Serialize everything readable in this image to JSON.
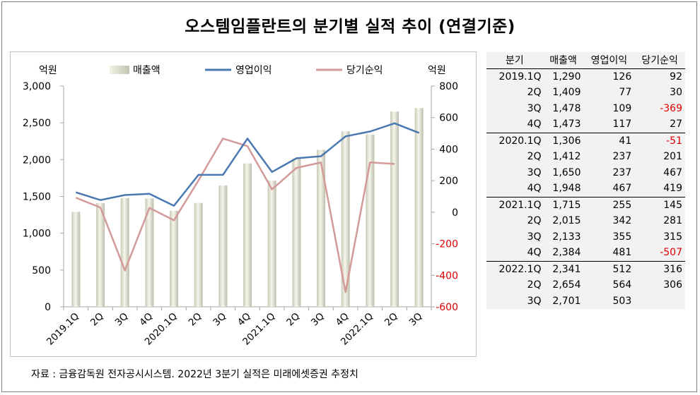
{
  "title": "오스템임플란트의 분기별 실적 추이 (연결기준)",
  "source": "자료 : 금융감독원 전자공시시스템. 2022년 3분기 실적은 미래에셋증권 추정치",
  "colors": {
    "revenue": "#d9d9c8",
    "operating_profit": "#4a78b0",
    "net_profit": "#d29a98",
    "negative": "#e00000"
  },
  "chart_data": {
    "type": "bar",
    "left_unit": "억원",
    "right_unit": "억원",
    "categories": [
      "2019.1Q",
      "2Q",
      "3Q",
      "4Q",
      "2020.1Q",
      "2Q",
      "3Q",
      "4Q",
      "2021.1Q",
      "2Q",
      "3Q",
      "4Q",
      "2022.1Q",
      "2Q",
      "3Q"
    ],
    "series": [
      {
        "name": "매출액",
        "type": "bar",
        "axis": "left",
        "values": [
          1290,
          1409,
          1478,
          1473,
          1306,
          1412,
          1650,
          1948,
          1715,
          2015,
          2133,
          2384,
          2341,
          2654,
          2701
        ]
      },
      {
        "name": "영업이익",
        "type": "line",
        "axis": "right",
        "values": [
          126,
          77,
          109,
          117,
          41,
          237,
          237,
          467,
          255,
          342,
          355,
          481,
          512,
          564,
          503
        ]
      },
      {
        "name": "당기순익",
        "type": "line",
        "axis": "right",
        "values": [
          92,
          30,
          -369,
          27,
          -51,
          201,
          467,
          419,
          145,
          281,
          315,
          -507,
          316,
          306,
          null
        ]
      }
    ],
    "left_axis": {
      "min": 0,
      "max": 3000,
      "ticks": [
        "0",
        "500",
        "1,000",
        "1,500",
        "2,000",
        "2,500",
        "3,000"
      ],
      "tick_values": [
        0,
        500,
        1000,
        1500,
        2000,
        2500,
        3000
      ]
    },
    "right_axis": {
      "min": -600,
      "max": 800,
      "ticks": [
        "-600",
        "-400",
        "-200",
        "0",
        "200",
        "400",
        "600",
        "800"
      ],
      "tick_values": [
        -600,
        -400,
        -200,
        0,
        200,
        400,
        600,
        800
      ]
    },
    "grid": false,
    "legend_position": "top"
  },
  "table": {
    "headers": [
      "분기",
      "매출액",
      "영업이익",
      "당기순익"
    ],
    "rows": [
      {
        "period": "2019.1Q",
        "revenue": "1,290",
        "op": "126",
        "net": "92",
        "year_start": true
      },
      {
        "period": "2Q",
        "revenue": "1,409",
        "op": "77",
        "net": "30"
      },
      {
        "period": "3Q",
        "revenue": "1,478",
        "op": "109",
        "net": "-369"
      },
      {
        "period": "4Q",
        "revenue": "1,473",
        "op": "117",
        "net": "27"
      },
      {
        "period": "2020.1Q",
        "revenue": "1,306",
        "op": "41",
        "net": "-51",
        "year_start": true
      },
      {
        "period": "2Q",
        "revenue": "1,412",
        "op": "237",
        "net": "201"
      },
      {
        "period": "3Q",
        "revenue": "1,650",
        "op": "237",
        "net": "467"
      },
      {
        "period": "4Q",
        "revenue": "1,948",
        "op": "467",
        "net": "419"
      },
      {
        "period": "2021.1Q",
        "revenue": "1,715",
        "op": "255",
        "net": "145",
        "year_start": true
      },
      {
        "period": "2Q",
        "revenue": "2,015",
        "op": "342",
        "net": "281"
      },
      {
        "period": "3Q",
        "revenue": "2,133",
        "op": "355",
        "net": "315"
      },
      {
        "period": "4Q",
        "revenue": "2,384",
        "op": "481",
        "net": "-507"
      },
      {
        "period": "2022.1Q",
        "revenue": "2,341",
        "op": "512",
        "net": "316",
        "year_start": true
      },
      {
        "period": "2Q",
        "revenue": "2,654",
        "op": "564",
        "net": "306"
      },
      {
        "period": "3Q",
        "revenue": "2,701",
        "op": "503",
        "net": ""
      }
    ]
  }
}
